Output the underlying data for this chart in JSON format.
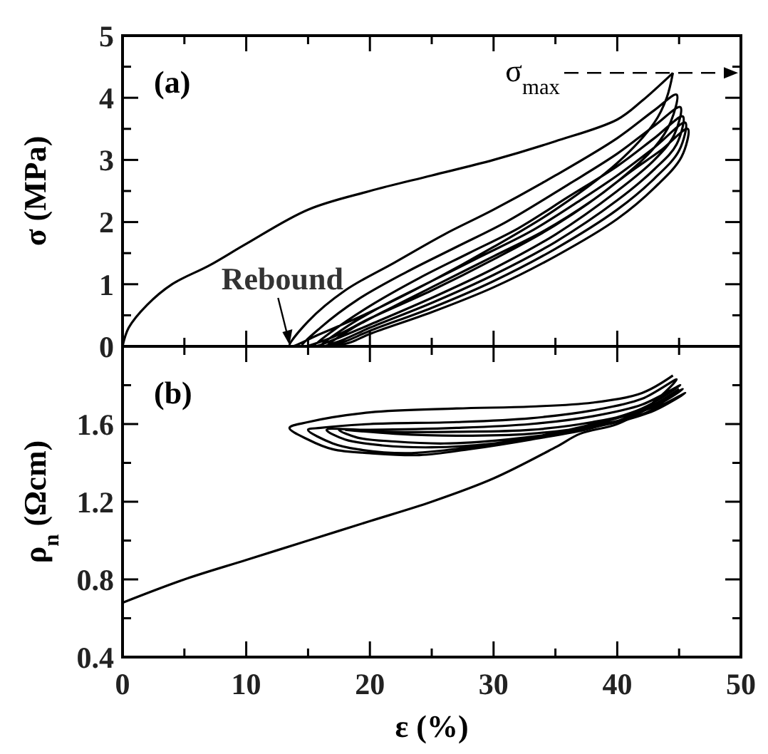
{
  "chart_data": [
    {
      "type": "line",
      "ylabel": "σ (MPa)",
      "xlim": [
        0,
        50
      ],
      "ylim": [
        0,
        5
      ],
      "xticks": [
        0,
        {
          "value": 5,
          "label": null
        },
        10,
        {
          "value": 15,
          "label": null
        },
        20,
        {
          "value": 25,
          "label": null
        },
        30,
        {
          "value": 35,
          "label": null
        },
        40,
        {
          "value": 45,
          "label": null
        },
        50
      ],
      "yticks": [
        0,
        {
          "value": 0.5,
          "label": null
        },
        1,
        {
          "value": 1.5,
          "label": null
        },
        2,
        {
          "value": 2.5,
          "label": null
        },
        3,
        {
          "value": 3.5,
          "label": null
        },
        4,
        {
          "value": 4.5,
          "label": null
        },
        5
      ],
      "tick_labels": "y",
      "grid": false,
      "marker": "none",
      "line_style": "solid",
      "annotations": [
        "(a)",
        {
          "text": "Rebound",
          "x": 13.5,
          "y": 0
        }
      ],
      "ref_lines": [
        {
          "axis": "y",
          "value": 4.4,
          "label": "σ$_{max}$",
          "line_style": "dashed",
          "color": "#000000"
        }
      ],
      "series": [
        {
          "color": "#000000",
          "x": [
            0,
            0.5,
            2,
            4,
            7,
            10,
            15,
            20,
            25,
            30,
            35,
            40,
            42,
            44.5
          ],
          "values": [
            0,
            0.3,
            0.67,
            1.0,
            1.3,
            1.65,
            2.2,
            2.5,
            2.75,
            3.0,
            3.3,
            3.65,
            3.95,
            4.4
          ]
        },
        {
          "color": "#000000",
          "x": [
            44.5,
            44,
            43,
            40,
            35,
            30,
            25,
            20,
            16,
            13.5,
            15,
            18,
            22,
            26,
            30,
            35,
            40,
            43,
            44.8,
            44.3,
            43,
            40,
            35,
            30,
            25,
            20,
            17,
            14.5,
            16,
            19,
            23,
            27,
            31,
            36,
            40,
            43,
            45.1,
            44.6,
            43,
            40,
            35,
            30,
            25,
            20,
            17,
            15.5,
            17,
            20,
            24,
            28,
            32,
            36,
            40,
            43,
            45.3,
            44.8,
            43,
            40,
            35,
            30,
            25,
            20,
            17.5,
            16,
            18,
            21,
            25,
            29,
            33,
            37,
            40,
            43,
            45.5,
            45,
            43,
            40,
            35,
            30,
            25,
            20,
            18,
            16.5,
            18.5,
            22,
            26,
            30,
            34,
            38,
            41,
            43.5,
            45.7,
            45.2,
            43,
            40,
            35,
            30,
            25,
            20,
            18.5,
            17
          ],
          "values": [
            4.4,
            4.0,
            3.6,
            2.95,
            2.2,
            1.6,
            1.05,
            0.55,
            0.2,
            0,
            0.4,
            0.9,
            1.35,
            1.8,
            2.2,
            2.75,
            3.35,
            3.8,
            4.05,
            3.6,
            3.2,
            2.65,
            1.95,
            1.4,
            0.9,
            0.45,
            0.15,
            0,
            0.3,
            0.75,
            1.2,
            1.6,
            2.0,
            2.6,
            3.1,
            3.55,
            3.85,
            3.4,
            3.0,
            2.5,
            1.8,
            1.25,
            0.78,
            0.35,
            0.1,
            0,
            0.25,
            0.65,
            1.1,
            1.5,
            1.9,
            2.4,
            2.9,
            3.35,
            3.7,
            3.25,
            2.85,
            2.35,
            1.68,
            1.15,
            0.7,
            0.3,
            0.08,
            0,
            0.3,
            0.65,
            1.05,
            1.45,
            1.85,
            2.35,
            2.75,
            3.2,
            3.6,
            3.15,
            2.7,
            2.2,
            1.57,
            1.05,
            0.62,
            0.25,
            0.08,
            0,
            0.28,
            0.65,
            1.05,
            1.45,
            1.85,
            2.35,
            2.8,
            3.15,
            3.5,
            3.05,
            2.55,
            2.05,
            1.45,
            0.95,
            0.55,
            0.2,
            0.07,
            0
          ]
        }
      ]
    },
    {
      "type": "line",
      "xlabel": "ε (%)",
      "ylabel": "ρ$_{n}$ (Ωcm)",
      "xlim": [
        0,
        50
      ],
      "ylim": [
        0.4,
        2.0
      ],
      "xticks": [
        0,
        {
          "value": 5,
          "label": null
        },
        10,
        {
          "value": 15,
          "label": null
        },
        20,
        {
          "value": 25,
          "label": null
        },
        30,
        {
          "value": 35,
          "label": null
        },
        40,
        {
          "value": 45,
          "label": null
        },
        50
      ],
      "yticks": [
        {
          "value": 0.4,
          "label": "0.4"
        },
        {
          "value": 0.6,
          "label": null
        },
        {
          "value": 0.8,
          "label": "0.8"
        },
        {
          "value": 1.0,
          "label": null
        },
        {
          "value": 1.2,
          "label": "1.2"
        },
        {
          "value": 1.4,
          "label": null
        },
        {
          "value": 1.6,
          "label": "1.6"
        },
        {
          "value": 1.8,
          "label": null
        }
      ],
      "grid": false,
      "marker": "none",
      "line_style": "solid",
      "annotations": [
        "(b)"
      ],
      "series": [
        {
          "color": "#000000",
          "x": [
            0,
            5,
            10,
            15,
            20,
            25,
            30,
            35,
            37,
            40,
            43,
            45
          ],
          "values": [
            0.68,
            0.8,
            0.9,
            1.0,
            1.1,
            1.2,
            1.32,
            1.48,
            1.55,
            1.6,
            1.7,
            1.78
          ]
        },
        {
          "color": "#000000",
          "x": [
            44.5,
            42,
            38,
            33,
            27,
            20,
            15,
            13.5,
            15,
            17,
            20,
            24,
            28,
            33,
            38,
            42,
            44.8,
            42,
            38,
            33,
            27,
            20,
            16,
            15,
            17,
            19,
            23,
            28,
            33,
            38,
            42,
            45.1,
            42,
            38,
            33,
            27,
            20,
            16.5,
            18,
            21,
            25,
            30,
            35,
            40,
            43,
            45.3,
            42,
            38,
            33,
            27,
            21,
            17.5,
            19,
            22,
            26,
            31,
            36,
            40,
            43,
            45.5,
            42,
            38,
            33,
            27,
            22,
            18
          ],
          "values": [
            1.85,
            1.76,
            1.71,
            1.69,
            1.68,
            1.66,
            1.61,
            1.58,
            1.52,
            1.47,
            1.45,
            1.44,
            1.47,
            1.52,
            1.58,
            1.67,
            1.83,
            1.73,
            1.67,
            1.63,
            1.61,
            1.6,
            1.58,
            1.57,
            1.5,
            1.47,
            1.45,
            1.48,
            1.53,
            1.6,
            1.68,
            1.8,
            1.7,
            1.64,
            1.6,
            1.58,
            1.57,
            1.57,
            1.52,
            1.49,
            1.48,
            1.5,
            1.55,
            1.63,
            1.69,
            1.78,
            1.67,
            1.61,
            1.57,
            1.56,
            1.56,
            1.57,
            1.53,
            1.51,
            1.5,
            1.52,
            1.56,
            1.61,
            1.67,
            1.76,
            1.65,
            1.59,
            1.55,
            1.54,
            1.55,
            1.57
          ]
        }
      ]
    }
  ]
}
